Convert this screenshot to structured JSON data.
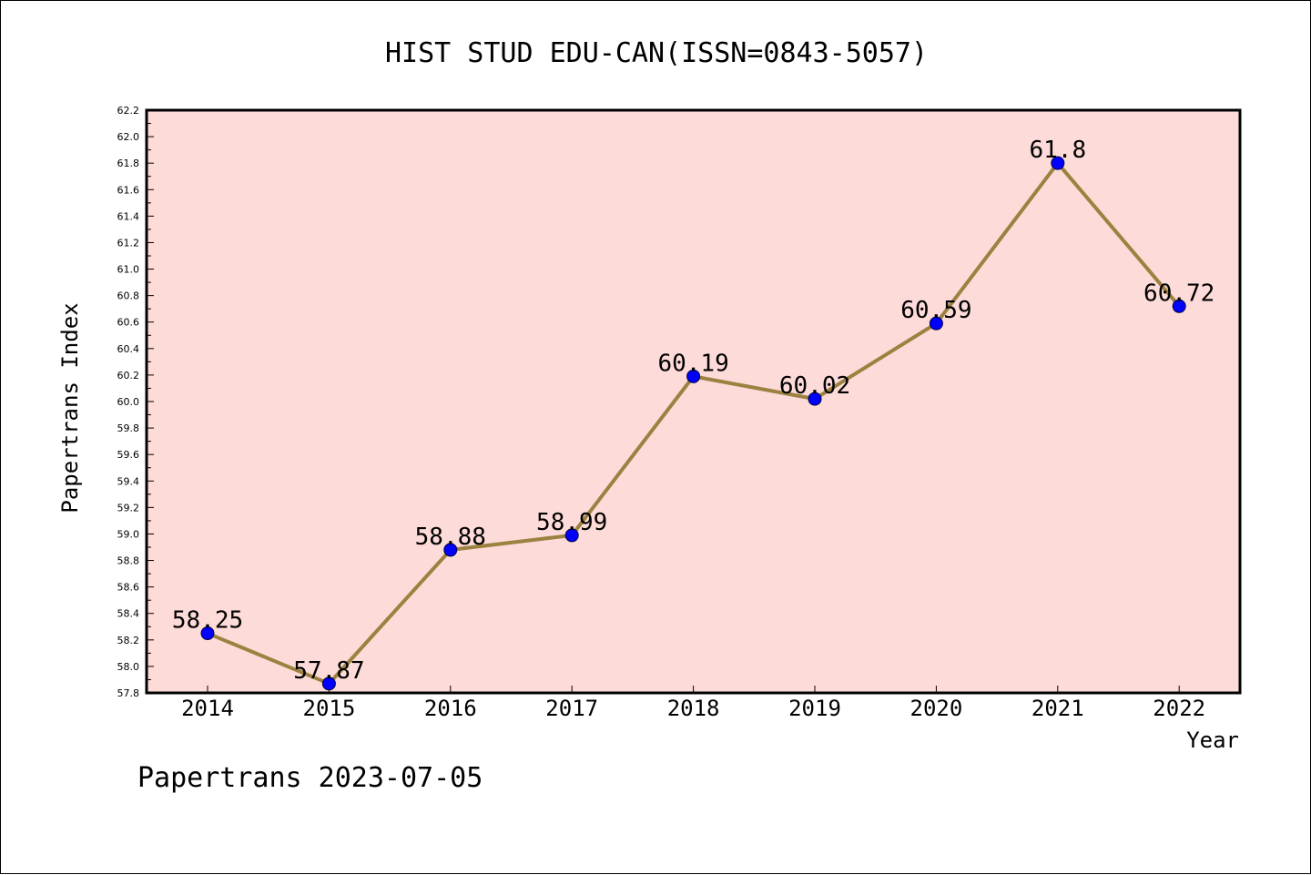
{
  "chart_data": {
    "type": "line",
    "title": "HIST STUD EDU-CAN(ISSN=0843-5057)",
    "xlabel": "Year",
    "ylabel": "Papertrans Index",
    "footer": "Papertrans 2023-07-05",
    "categories": [
      "2014",
      "2015",
      "2016",
      "2017",
      "2018",
      "2019",
      "2020",
      "2021",
      "2022"
    ],
    "values": [
      58.25,
      57.87,
      58.88,
      58.99,
      60.19,
      60.02,
      60.59,
      61.8,
      60.72
    ],
    "data_labels": [
      "58.25",
      "57.87",
      "58.88",
      "58.99",
      "60.19",
      "60.02",
      "60.59",
      "61.8",
      "60.72"
    ],
    "ylim": [
      57.8,
      62.2
    ],
    "yticks": [
      "57.8",
      "58.0",
      "58.2",
      "58.4",
      "58.6",
      "58.8",
      "59.0",
      "59.2",
      "59.4",
      "59.6",
      "59.8",
      "60.0",
      "60.2",
      "60.4",
      "60.6",
      "60.8",
      "61.0",
      "61.2",
      "61.4",
      "61.6",
      "61.8",
      "62.0",
      "62.2"
    ],
    "grid": false,
    "legend": "none",
    "colors": {
      "plot_background": "#fddbd8",
      "line": "#9b8240",
      "marker": "#0000ff",
      "axes": "#000000"
    }
  }
}
